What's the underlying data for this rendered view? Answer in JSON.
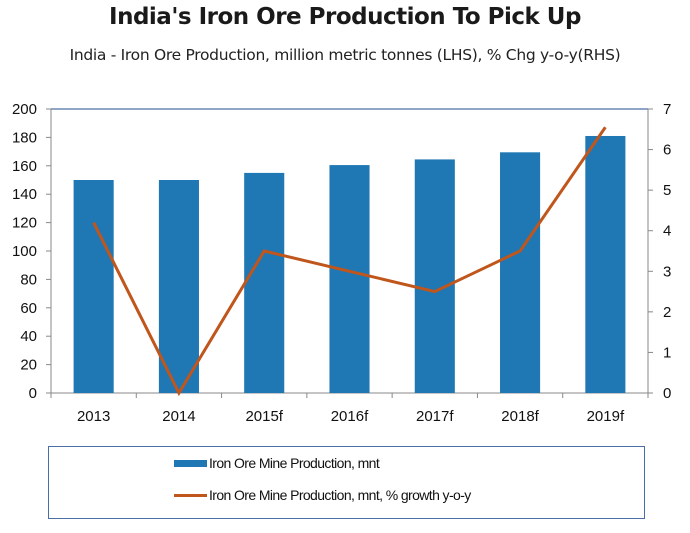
{
  "chart_data": {
    "type": "bar+line",
    "title": "India's Iron Ore Production To Pick Up",
    "subtitle": "India - Iron Ore Production, million metric tonnes (LHS), % Chg y-o-y(RHS)",
    "categories": [
      "2013",
      "2014",
      "2015f",
      "2016f",
      "2017f",
      "2018f",
      "2019f"
    ],
    "series": [
      {
        "name": "Iron Ore Mine Production, mnt",
        "type": "bar",
        "axis": "left",
        "color": "#1f77b4",
        "values": [
          150,
          150,
          155,
          160.5,
          164.5,
          169.5,
          181
        ]
      },
      {
        "name": "Iron Ore Mine Production, mnt, % growth y-o-y",
        "type": "line",
        "axis": "right",
        "color": "#c0561b",
        "values": [
          4.2,
          0.0,
          3.5,
          3.0,
          2.5,
          3.5,
          6.55
        ]
      }
    ],
    "y_left": {
      "min": 0,
      "max": 200,
      "ticks": [
        0,
        20,
        40,
        60,
        80,
        100,
        120,
        140,
        160,
        180,
        200
      ]
    },
    "y_right": {
      "min": 0,
      "max": 7,
      "ticks": [
        0,
        1,
        2,
        3,
        4,
        5,
        6,
        7
      ]
    },
    "xlabel": "",
    "ylabel_left": "",
    "ylabel_right": "",
    "grid": false,
    "legend_position": "bottom"
  }
}
